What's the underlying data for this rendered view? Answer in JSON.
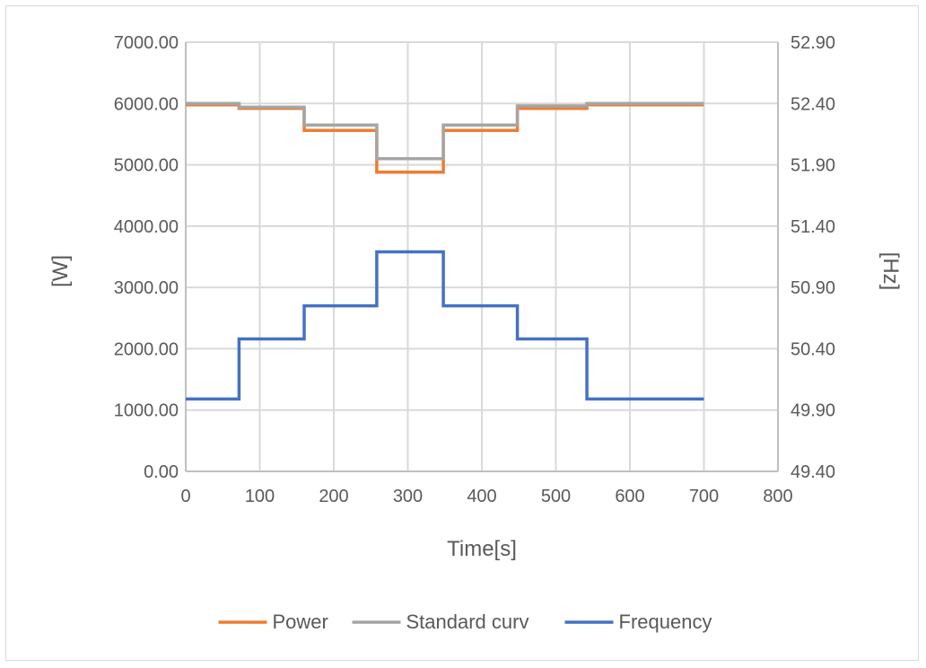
{
  "chart_data": {
    "type": "line",
    "xlabel": "Time[s]",
    "ylabel_left": "[W]",
    "ylabel_right": "[Hz]",
    "xlim": [
      0,
      800
    ],
    "ylim_left": [
      0,
      7000
    ],
    "ylim_right": [
      49.4,
      52.9
    ],
    "x_ticks": [
      "0",
      "100",
      "200",
      "300",
      "400",
      "500",
      "600",
      "700",
      "800"
    ],
    "y_left_ticks": [
      "0.00",
      "1000.00",
      "2000.00",
      "3000.00",
      "4000.00",
      "5000.00",
      "6000.00",
      "7000.00"
    ],
    "y_right_ticks": [
      "49.40",
      "49.90",
      "50.40",
      "50.90",
      "51.40",
      "51.90",
      "52.40",
      "52.90"
    ],
    "grid": true,
    "legend_position": "bottom",
    "series": [
      {
        "name": "Power",
        "axis": "left",
        "color": "#ED7D31",
        "x": [
          0,
          72,
          72,
          160,
          160,
          258,
          258,
          348,
          348,
          448,
          448,
          542,
          542,
          700
        ],
        "y": [
          5980,
          5980,
          5920,
          5920,
          5560,
          5560,
          4880,
          4880,
          5560,
          5560,
          5920,
          5920,
          5980,
          5980
        ]
      },
      {
        "name": "Standard curv",
        "axis": "left",
        "color": "#A5A5A5",
        "x": [
          0,
          72,
          72,
          160,
          160,
          258,
          258,
          348,
          348,
          448,
          448,
          542,
          542,
          700
        ],
        "y": [
          6000,
          6000,
          5940,
          5940,
          5650,
          5650,
          5100,
          5100,
          5650,
          5650,
          5960,
          5960,
          6000,
          6000
        ]
      },
      {
        "name": "Frequency",
        "axis": "right",
        "color": "#4472C4",
        "x": [
          0,
          72,
          72,
          160,
          160,
          258,
          258,
          348,
          348,
          448,
          448,
          542,
          542,
          700
        ],
        "y": [
          49.99,
          49.99,
          50.48,
          50.48,
          50.75,
          50.75,
          51.19,
          51.19,
          50.75,
          50.75,
          50.48,
          50.48,
          49.99,
          49.99
        ]
      }
    ]
  }
}
